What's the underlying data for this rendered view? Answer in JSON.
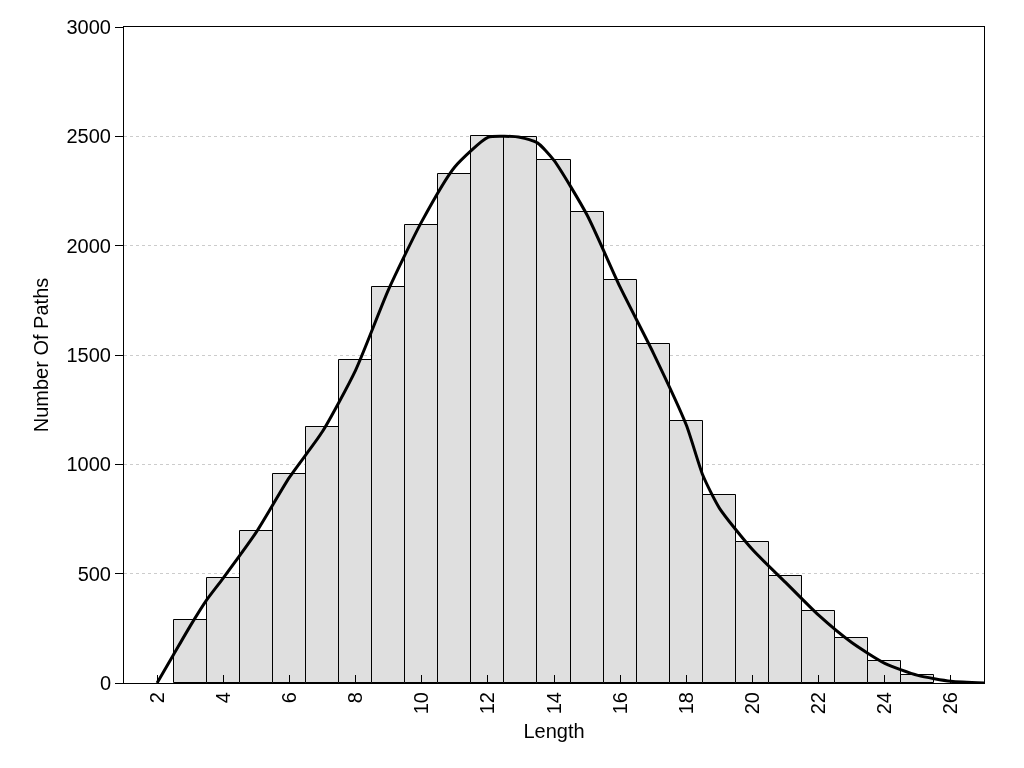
{
  "chart_data": {
    "type": "histogram",
    "xlabel": "Length",
    "ylabel": "Number Of Paths",
    "xlim": [
      1,
      27
    ],
    "xticks": [
      2,
      4,
      6,
      8,
      10,
      12,
      14,
      16,
      18,
      20,
      22,
      24,
      26
    ],
    "ylim": [
      0,
      3000
    ],
    "yticks": [
      0,
      500,
      1000,
      1500,
      2000,
      2500,
      3000
    ],
    "grid": "y",
    "series": [
      {
        "color": "#dfdfdf",
        "bins": [
          2.5,
          3.5,
          4.5,
          5.5,
          6.5,
          7.5,
          8.5,
          9.5,
          10.5,
          11.5,
          12.5,
          13.5,
          14.5,
          15.5,
          16.5,
          17.5,
          18.5,
          19.5,
          20.5,
          21.5,
          22.5,
          23.5,
          24.5,
          25.5,
          26.5
        ],
        "values": [
          290,
          479,
          694,
          954,
          1169,
          1475,
          1810,
          2093,
          2326,
          2500,
          2495,
          2394,
          2152,
          1842,
          1550,
          1200,
          860,
          645,
          488,
          328,
          204,
          99,
          37,
          null
        ]
      },
      {
        "type": "line",
        "color": "#000000",
        "x": [
          2,
          2.5,
          3,
          3.5,
          4,
          5,
          6,
          7,
          8,
          9,
          10,
          11,
          12,
          12.5,
          13,
          13.5,
          14,
          15,
          16,
          17,
          18,
          18.5,
          19,
          20,
          21,
          22,
          23,
          24,
          25,
          26,
          27
        ],
        "values": [
          0,
          130,
          260,
          380,
          480,
          690,
          940,
          1150,
          1430,
          1800,
          2110,
          2360,
          2495,
          2500,
          2495,
          2470,
          2390,
          2140,
          1810,
          1510,
          1180,
          950,
          800,
          610,
          460,
          310,
          185,
          90,
          35,
          8,
          0
        ]
      }
    ]
  }
}
